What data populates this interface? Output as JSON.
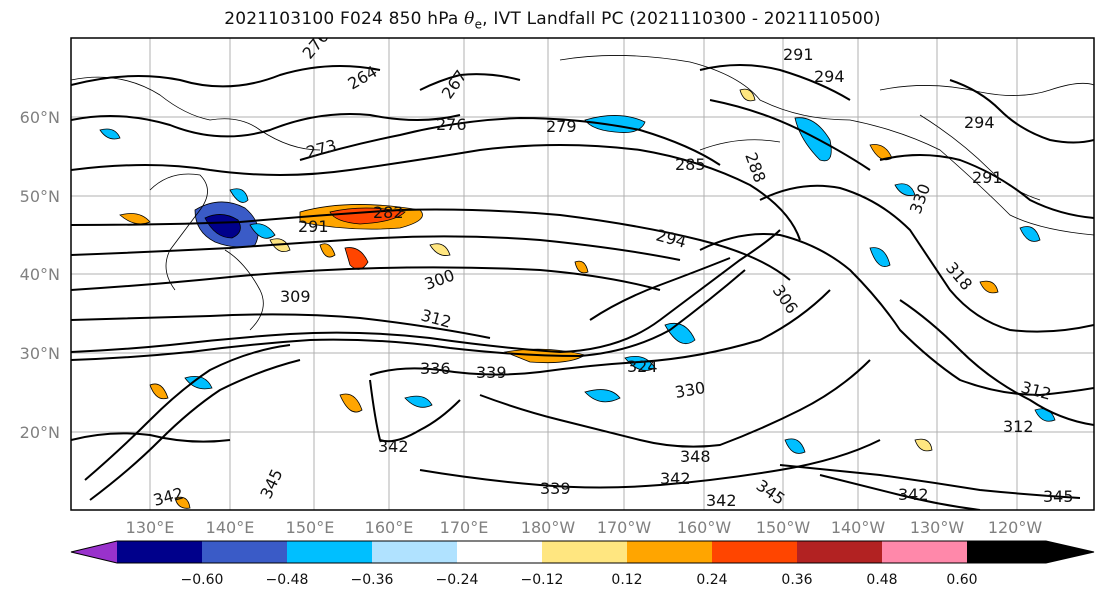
{
  "title": {
    "prefix": "2021103100 F024 850 hPa ",
    "symbol": "θ",
    "subscript": "e",
    "suffix": ", IVT Landfall PC (2021110300 - 2021110500)"
  },
  "map": {
    "lat_labels": [
      "60°N",
      "50°N",
      "40°N",
      "30°N",
      "20°N"
    ],
    "lon_labels": [
      "130°E",
      "140°E",
      "150°E",
      "160°E",
      "170°E",
      "180°W",
      "170°W",
      "160°W",
      "150°W",
      "140°W",
      "130°W",
      "120°W"
    ],
    "contour_labels": [
      "276",
      "264",
      "267",
      "273",
      "276",
      "279",
      "285",
      "288",
      "291",
      "294",
      "291",
      "294",
      "282",
      "291",
      "294",
      "300",
      "306",
      "309",
      "312",
      "318",
      "330",
      "336",
      "339",
      "324",
      "330",
      "342",
      "342",
      "345",
      "348",
      "342",
      "339",
      "342",
      "345",
      "342",
      "312",
      "312",
      "345"
    ]
  },
  "colorbar": {
    "tick_labels": [
      "−0.60",
      "−0.48",
      "−0.36",
      "−0.24",
      "−0.12",
      "0.12",
      "0.24",
      "0.36",
      "0.48",
      "0.60"
    ],
    "colors": [
      "#9932CC",
      "#00008B",
      "#3A5BC7",
      "#00BFFF",
      "#B0E2FF",
      "#FFFFFF",
      "#FFE680",
      "#FFA500",
      "#FF4500",
      "#B22222",
      "#FF88AA"
    ]
  }
}
